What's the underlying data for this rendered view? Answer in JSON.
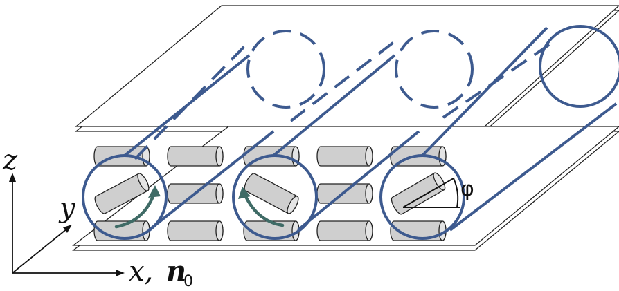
{
  "axes": {
    "z_label": "z",
    "y_label": "y",
    "x_label": "x,",
    "n_label": "n",
    "n_subscript": "0"
  },
  "angle_label": "φ",
  "colors": {
    "helix": "#3d5a8f",
    "rotation_arrow": "#3f6b66",
    "cylinder_fill": "#cfcfcf",
    "cylinder_stroke": "#222222",
    "plate_stroke": "#222222"
  },
  "cylinder_rows": 3,
  "cylinder_columns": 5
}
